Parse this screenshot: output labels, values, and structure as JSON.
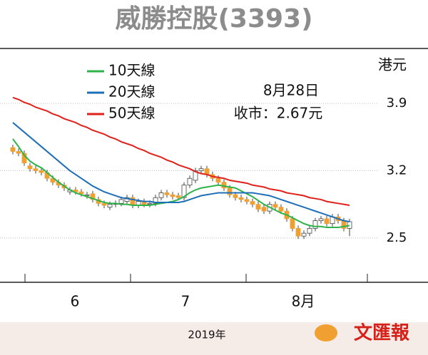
{
  "chart_data": {
    "type": "candlestick",
    "title": "威勝控股(3393)",
    "y_unit": "港元",
    "ylim": [
      2.04,
      4.47
    ],
    "yticks": [
      3.9,
      3.2,
      2.5
    ],
    "months": [
      "6",
      "7",
      "8月"
    ],
    "year": "2019年",
    "annotations": [
      "8月28日",
      "收市：2.67元"
    ],
    "source": "文匯報",
    "up_color": "#ffffff",
    "down_color": "#f0a030",
    "candles": {
      "open": [
        3.44,
        3.4,
        3.38,
        3.25,
        3.22,
        3.2,
        3.18,
        3.12,
        3.08,
        3.05,
        2.98,
        3.0,
        2.98,
        2.94,
        2.96,
        2.9,
        2.86,
        2.82,
        2.85,
        2.86,
        2.88,
        2.92,
        2.84,
        2.88,
        2.85,
        2.86,
        2.92,
        2.97,
        2.95,
        2.94,
        2.92,
        3.05,
        3.1,
        3.2,
        3.22,
        3.16,
        3.12,
        3.08,
        3.02,
        2.95,
        2.92,
        2.9,
        2.88,
        2.85,
        2.82,
        2.78,
        2.85,
        2.82,
        2.78,
        2.7,
        2.6,
        2.52,
        2.55,
        2.6,
        2.68,
        2.7,
        2.65,
        2.72,
        2.68,
        2.6
      ],
      "high": [
        3.47,
        3.43,
        3.41,
        3.28,
        3.25,
        3.23,
        3.21,
        3.15,
        3.11,
        3.08,
        3.03,
        3.03,
        3.01,
        2.98,
        2.99,
        2.93,
        2.89,
        2.88,
        2.89,
        2.93,
        2.95,
        2.95,
        2.91,
        2.91,
        2.89,
        2.95,
        3.0,
        3.0,
        2.98,
        2.97,
        3.08,
        3.15,
        3.23,
        3.25,
        3.25,
        3.19,
        3.15,
        3.11,
        3.05,
        2.98,
        2.95,
        2.93,
        2.91,
        2.88,
        2.85,
        2.88,
        2.88,
        2.85,
        2.81,
        2.73,
        2.63,
        2.58,
        2.63,
        2.71,
        2.73,
        2.73,
        2.75,
        2.75,
        2.71,
        2.7
      ],
      "low": [
        3.37,
        3.35,
        3.25,
        3.19,
        3.17,
        3.15,
        3.09,
        3.05,
        3.02,
        2.99,
        2.95,
        2.95,
        2.93,
        2.91,
        2.87,
        2.83,
        2.81,
        2.79,
        2.82,
        2.83,
        2.85,
        2.81,
        2.81,
        2.82,
        2.82,
        2.83,
        2.89,
        2.92,
        2.9,
        2.89,
        2.89,
        3.02,
        3.07,
        3.17,
        3.13,
        3.09,
        3.05,
        2.99,
        2.92,
        2.89,
        2.87,
        2.85,
        2.82,
        2.77,
        2.75,
        2.75,
        2.79,
        2.75,
        2.67,
        2.57,
        2.49,
        2.49,
        2.52,
        2.57,
        2.65,
        2.62,
        2.62,
        2.65,
        2.57,
        2.52
      ],
      "close": [
        3.4,
        3.38,
        3.28,
        3.22,
        3.2,
        3.18,
        3.12,
        3.08,
        3.05,
        3.02,
        3.0,
        2.98,
        2.96,
        2.95,
        2.9,
        2.86,
        2.84,
        2.85,
        2.86,
        2.9,
        2.92,
        2.84,
        2.88,
        2.85,
        2.86,
        2.92,
        2.97,
        2.95,
        2.93,
        2.92,
        3.05,
        3.12,
        3.2,
        3.22,
        3.16,
        3.12,
        3.08,
        3.02,
        2.95,
        2.92,
        2.9,
        2.88,
        2.85,
        2.8,
        2.78,
        2.85,
        2.82,
        2.78,
        2.7,
        2.6,
        2.52,
        2.55,
        2.6,
        2.68,
        2.7,
        2.65,
        2.72,
        2.68,
        2.6,
        2.67
      ]
    },
    "series": [
      {
        "name": "10天線",
        "color": "#2db34a",
        "values": [
          3.53,
          3.45,
          3.36,
          3.3,
          3.26,
          3.23,
          3.18,
          3.13,
          3.08,
          3.04,
          3.0,
          2.97,
          2.95,
          2.93,
          2.91,
          2.89,
          2.87,
          2.86,
          2.86,
          2.85,
          2.85,
          2.84,
          2.84,
          2.84,
          2.84,
          2.85,
          2.86,
          2.87,
          2.88,
          2.9,
          2.93,
          2.97,
          3.0,
          3.02,
          3.03,
          3.04,
          3.05,
          3.04,
          3.03,
          3.02,
          2.99,
          2.96,
          2.93,
          2.89,
          2.85,
          2.82,
          2.79,
          2.76,
          2.74,
          2.71,
          2.68,
          2.65,
          2.63,
          2.62,
          2.62,
          2.61,
          2.61,
          2.61,
          2.62,
          2.63
        ]
      },
      {
        "name": "20天線",
        "color": "#1f6fb8",
        "values": [
          3.7,
          3.65,
          3.6,
          3.55,
          3.5,
          3.45,
          3.4,
          3.35,
          3.3,
          3.25,
          3.2,
          3.16,
          3.12,
          3.08,
          3.04,
          3.01,
          2.98,
          2.96,
          2.94,
          2.92,
          2.91,
          2.9,
          2.89,
          2.88,
          2.88,
          2.87,
          2.87,
          2.87,
          2.87,
          2.87,
          2.88,
          2.9,
          2.92,
          2.94,
          2.95,
          2.96,
          2.97,
          2.97,
          2.97,
          2.97,
          2.97,
          2.97,
          2.97,
          2.96,
          2.95,
          2.94,
          2.92,
          2.9,
          2.88,
          2.86,
          2.84,
          2.82,
          2.8,
          2.78,
          2.76,
          2.74,
          2.72,
          2.7,
          2.68,
          2.67
        ]
      },
      {
        "name": "50天線",
        "color": "#e0201b",
        "values": [
          3.96,
          3.94,
          3.91,
          3.89,
          3.86,
          3.84,
          3.82,
          3.79,
          3.77,
          3.74,
          3.72,
          3.7,
          3.67,
          3.65,
          3.62,
          3.6,
          3.58,
          3.55,
          3.53,
          3.5,
          3.48,
          3.46,
          3.43,
          3.41,
          3.38,
          3.36,
          3.34,
          3.31,
          3.29,
          3.26,
          3.24,
          3.22,
          3.19,
          3.17,
          3.16,
          3.14,
          3.13,
          3.12,
          3.1,
          3.09,
          3.08,
          3.07,
          3.05,
          3.04,
          3.03,
          3.01,
          3.0,
          2.99,
          2.97,
          2.96,
          2.95,
          2.94,
          2.92,
          2.91,
          2.9,
          2.88,
          2.87,
          2.86,
          2.85,
          2.84
        ]
      }
    ]
  }
}
